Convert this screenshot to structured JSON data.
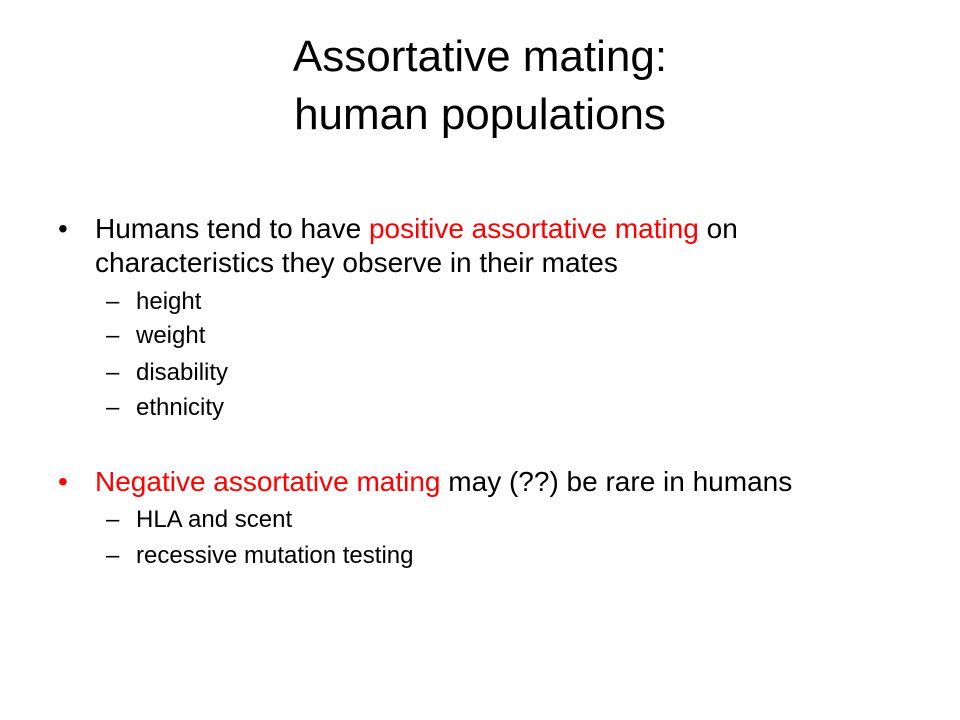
{
  "slide": {
    "title_line1": "Assortative mating:",
    "title_line2": "human populations",
    "accent_color": "#ff0000",
    "bullets": [
      {
        "bullet_char": "•",
        "text_before": "Humans tend to have ",
        "highlight": "positive assortative mating",
        "text_after": " on",
        "line2": "characteristics they observe in their mates",
        "subitems": [
          "height",
          "weight",
          "disability",
          "ethnicity"
        ]
      },
      {
        "bullet_char": "•",
        "highlight": "Negative assortative mating",
        "text_after": " may (??) be rare in humans",
        "subitems": [
          "HLA and scent",
          "recessive mutation testing"
        ]
      }
    ],
    "dash_char": "–"
  }
}
